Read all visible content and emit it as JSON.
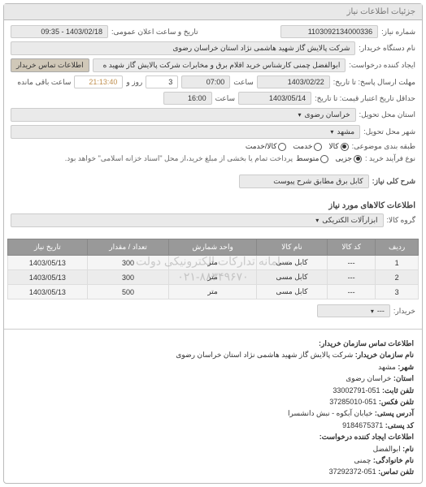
{
  "panel": {
    "title": "جزئیات اطلاعات نیاز"
  },
  "top": {
    "need_no_label": "شماره نیاز:",
    "need_no": "1103092134000336",
    "announce_label": "تاریخ و ساعت اعلان عمومی:",
    "announce_value": "1403/02/18 - 09:35",
    "buyer_label": "نام دستگاه خریدار:",
    "buyer_value": "شرکت پالایش گاز شهید هاشمی نژاد   استان خراسان رضوی",
    "requester_label": "ایجاد کننده درخواست:",
    "requester_value": "ابوالفضل چمنی کارشناس خرید اقلام برق و مخابرات شرکت پالایش گاز شهید ه",
    "contact_btn": "اطلاعات تماس خریدار",
    "deadline_label": "مهلت ارسال پاسخ: تا تاریخ:",
    "deadline_date": "1403/02/22",
    "time_label": "ساعت",
    "deadline_time": "07:00",
    "days_label": "روز و",
    "days_value": "3",
    "remain_time": "21:13:40",
    "remain_label": "ساعت باقی مانده",
    "validity_label": "حداقل تاریخ اعتبار قیمت: تا تاریخ:",
    "validity_date": "1403/05/14",
    "validity_time": "16:00",
    "province_label": "استان محل تحویل:",
    "province_value": "خراسان رضوی",
    "city_label": "شهر محل تحویل:",
    "city_value": "مشهد",
    "subject_type_label": "طبقه بندی موضوعی:",
    "subject_options": {
      "goods": "کالا",
      "service": "خدمت",
      "goods_service": "کالا/خدمت"
    },
    "process_label": "نوع فرآیند خرید :",
    "process_options": {
      "small": "جزیی",
      "medium": "متوسط"
    },
    "process_note": "پرداخت تمام یا بخشی از مبلغ خرید،از محل \"اسناد خزانه اسلامی\" خواهد بود.",
    "desc_label": "شرح کلی نیاز:",
    "desc_value": "کابل برق مطابق شرح پیوست"
  },
  "goods": {
    "section_title": "اطلاعات کالاهای مورد نیاز",
    "group_label": "گروه کالا:",
    "group_value": "ابزارآلات الکتریکی",
    "columns": [
      "ردیف",
      "کد کالا",
      "نام کالا",
      "واحد شمارش",
      "تعداد / مقدار",
      "تاریخ نیاز"
    ],
    "rows": [
      [
        "1",
        "---",
        "کابل مسی",
        "متر",
        "300",
        "1403/05/13"
      ],
      [
        "2",
        "---",
        "کابل مسی",
        "متر",
        "300",
        "1403/05/13"
      ],
      [
        "3",
        "---",
        "کابل مسی",
        "متر",
        "500",
        "1403/05/13"
      ]
    ],
    "seller_label": "خریدار:",
    "seller_value": "---"
  },
  "watermark": {
    "line1": "سامانه تدارکات الکترونیکی دولت",
    "line2": "۰۲۱-۸۸۳۴۹۶۷۰"
  },
  "contact": {
    "title": "اطلاعات تماس سازمان خریدار:",
    "org_label": "نام سازمان خریدار:",
    "org_value": "شرکت پالایش گاز شهید هاشمی نژاد استان خراسان رضوی",
    "city_label": "شهر:",
    "city_value": "مشهد",
    "province_label": "استان:",
    "province_value": "خراسان رضوی",
    "phone_label": "تلفن ثابت:",
    "phone_value": "051-33002791",
    "fax_label": "تلفن فکس:",
    "fax_value": "051-37285010",
    "address_label": "آدرس پستی:",
    "address_value": "خیابان آبکوه - نبش دانشسرا",
    "postal_label": "کد پستی:",
    "postal_value": "9184675371",
    "req_title": "اطلاعات ایجاد کننده درخواست:",
    "fname_label": "نام:",
    "fname_value": "ابوالفضل",
    "lname_label": "نام خانوادگی:",
    "lname_value": "چمنی",
    "req_phone_label": "تلفن تماس:",
    "req_phone_value": "051-37292372"
  }
}
